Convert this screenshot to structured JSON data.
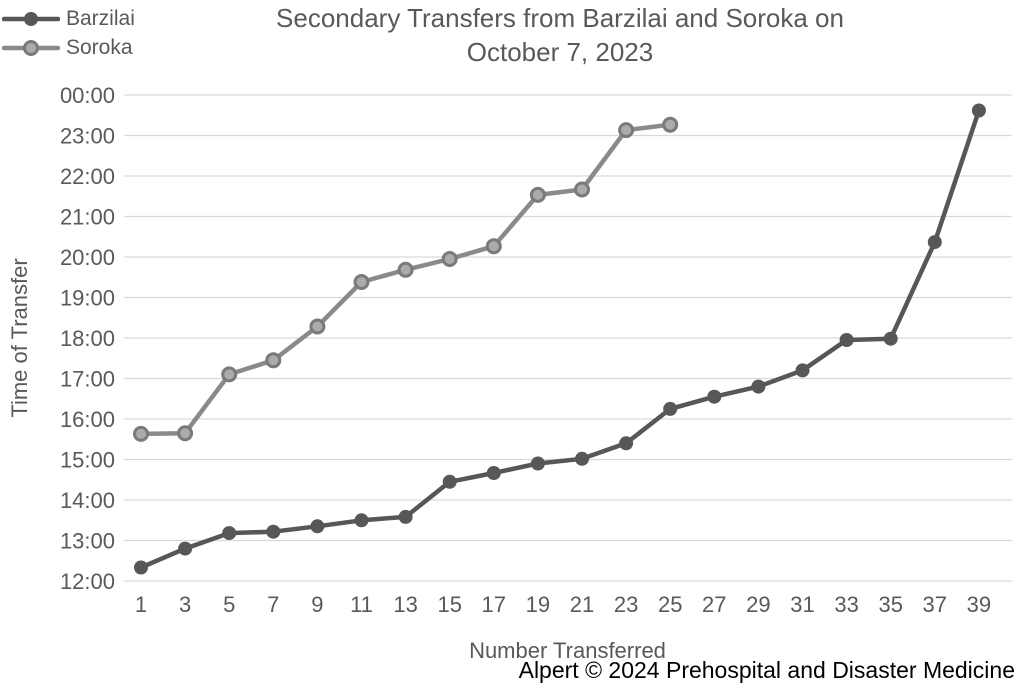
{
  "title_lines": [
    "Secondary Transfers from Barzilai and Soroka on",
    "October 7, 2023"
  ],
  "credit": "Alpert © 2024 Prehospital and Disaster Medicine",
  "chart_data": {
    "type": "line",
    "title": "Secondary Transfers from Barzilai and Soroka on October 7, 2023",
    "xlabel": "Number Transferred",
    "ylabel": "Time of Transfer",
    "x_ticks": [
      1,
      3,
      5,
      7,
      9,
      11,
      13,
      15,
      17,
      19,
      21,
      23,
      25,
      27,
      29,
      31,
      33,
      35,
      37,
      39
    ],
    "y_ticks": [
      "00:00",
      "23:00",
      "22:00",
      "21:00",
      "20:00",
      "19:00",
      "18:00",
      "17:00",
      "16:00",
      "15:00",
      "14:00",
      "13:00",
      "12:00"
    ],
    "ylim_hours": [
      12,
      24
    ],
    "grid": "horizontal-only",
    "legend_position": "top-left",
    "colors": {
      "axis_text": "#595959",
      "title_text": "#595959",
      "credit_text": "#000000",
      "gridline": "#d9d9d9",
      "background": "#ffffff"
    },
    "series": [
      {
        "name": "Barzilai",
        "line_color": "#575757",
        "marker_fill": "#575757",
        "marker_stroke": "#575757",
        "points": [
          [
            1,
            "12:20"
          ],
          [
            3,
            "12:48"
          ],
          [
            5,
            "13:11"
          ],
          [
            7,
            "13:13"
          ],
          [
            9,
            "13:21"
          ],
          [
            11,
            "13:30"
          ],
          [
            13,
            "13:35"
          ],
          [
            15,
            "14:27"
          ],
          [
            17,
            "14:40"
          ],
          [
            19,
            "14:54"
          ],
          [
            21,
            "15:01"
          ],
          [
            23,
            "15:24"
          ],
          [
            25,
            "16:15"
          ],
          [
            27,
            "16:33"
          ],
          [
            29,
            "16:48"
          ],
          [
            31,
            "17:12"
          ],
          [
            33,
            "17:57"
          ],
          [
            35,
            "17:59"
          ],
          [
            37,
            "20:22"
          ],
          [
            39,
            "23:37"
          ]
        ]
      },
      {
        "name": "Soroka",
        "line_color": "#8a8a8a",
        "marker_fill": "#ababab",
        "marker_stroke": "#7a7a7a",
        "points": [
          [
            1,
            "15:38"
          ],
          [
            3,
            "15:39"
          ],
          [
            5,
            "17:06"
          ],
          [
            7,
            "17:27"
          ],
          [
            9,
            "18:17"
          ],
          [
            11,
            "19:23"
          ],
          [
            13,
            "19:41"
          ],
          [
            15,
            "19:57"
          ],
          [
            17,
            "20:16"
          ],
          [
            19,
            "21:32"
          ],
          [
            21,
            "21:40"
          ],
          [
            23,
            "23:08"
          ],
          [
            25,
            "23:16"
          ]
        ]
      }
    ]
  }
}
